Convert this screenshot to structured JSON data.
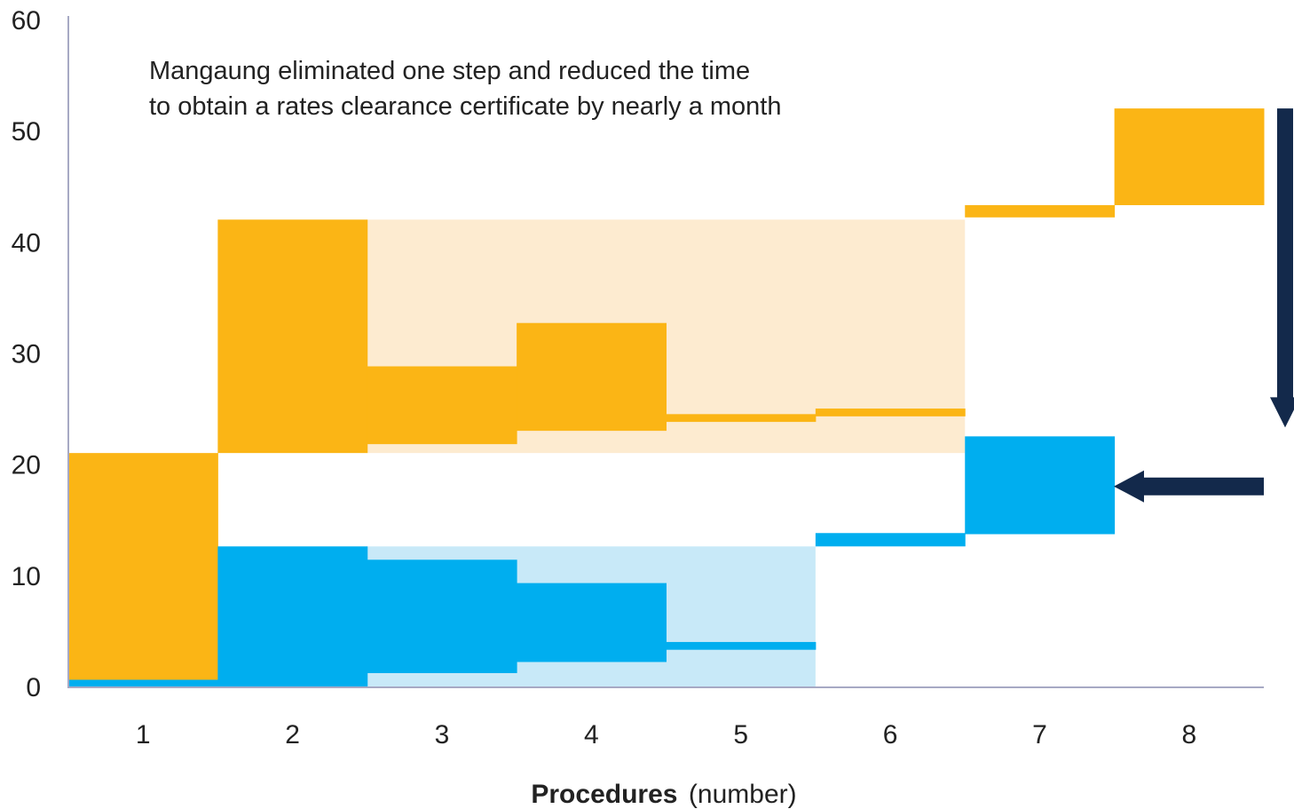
{
  "chart_data": {
    "type": "bar",
    "title": "",
    "annotation": [
      "Mangaung eliminated one step and reduced the time",
      "to obtain a rates clearance certificate by nearly a month"
    ],
    "xlabel": "Procedures",
    "xlabel_unit": "(number)",
    "ylabel": "",
    "ylim": [
      0,
      60
    ],
    "yticks": [
      "0",
      "10",
      "20",
      "30",
      "40",
      "50",
      "60"
    ],
    "categories": [
      "1",
      "2",
      "3",
      "4",
      "5",
      "6",
      "7",
      "8"
    ],
    "series": [
      {
        "color": "#FBB515",
        "steps": [
          {
            "procedure": 1,
            "start": 0.5,
            "end": 21
          },
          {
            "procedure": 2,
            "start": 21,
            "end": 42
          },
          {
            "procedure": 3,
            "start": 21.8,
            "end": 28.8
          },
          {
            "procedure": 4,
            "start": 23,
            "end": 32.7
          },
          {
            "procedure": 5,
            "start": 23.8,
            "end": 24.5
          },
          {
            "procedure": 6,
            "start": 24.3,
            "end": 25
          },
          {
            "procedure": 7,
            "start": 42.2,
            "end": 43.3
          },
          {
            "procedure": 8,
            "start": 43.3,
            "end": 52
          }
        ],
        "parallel_band": {
          "from_procedure": 3,
          "to_procedure": 6,
          "start": 21,
          "end": 42,
          "color": "#FDEBD0"
        }
      },
      {
        "color": "#00AEEF",
        "steps": [
          {
            "procedure": 1,
            "start": 0,
            "end": 0.6
          },
          {
            "procedure": 2,
            "start": 0,
            "end": 12.6
          },
          {
            "procedure": 3,
            "start": 1.2,
            "end": 11.4
          },
          {
            "procedure": 4,
            "start": 2.2,
            "end": 9.3
          },
          {
            "procedure": 5,
            "start": 3.3,
            "end": 4
          },
          {
            "procedure": 6,
            "start": 12.6,
            "end": 13.8
          },
          {
            "procedure": 7,
            "start": 13.7,
            "end": 22.5
          }
        ],
        "parallel_band": {
          "from_procedure": 3,
          "to_procedure": 5,
          "start": 0,
          "end": 12.6,
          "color": "#C8E9F8"
        }
      }
    ],
    "arrows": [
      {
        "name": "down-arrow",
        "orientation": "vertical",
        "from": 52,
        "to": 22.5
      },
      {
        "name": "left-arrow",
        "orientation": "horizontal",
        "value": 18
      }
    ],
    "axis_color": "#A7A9C4",
    "arrow_color": "#13294B"
  }
}
